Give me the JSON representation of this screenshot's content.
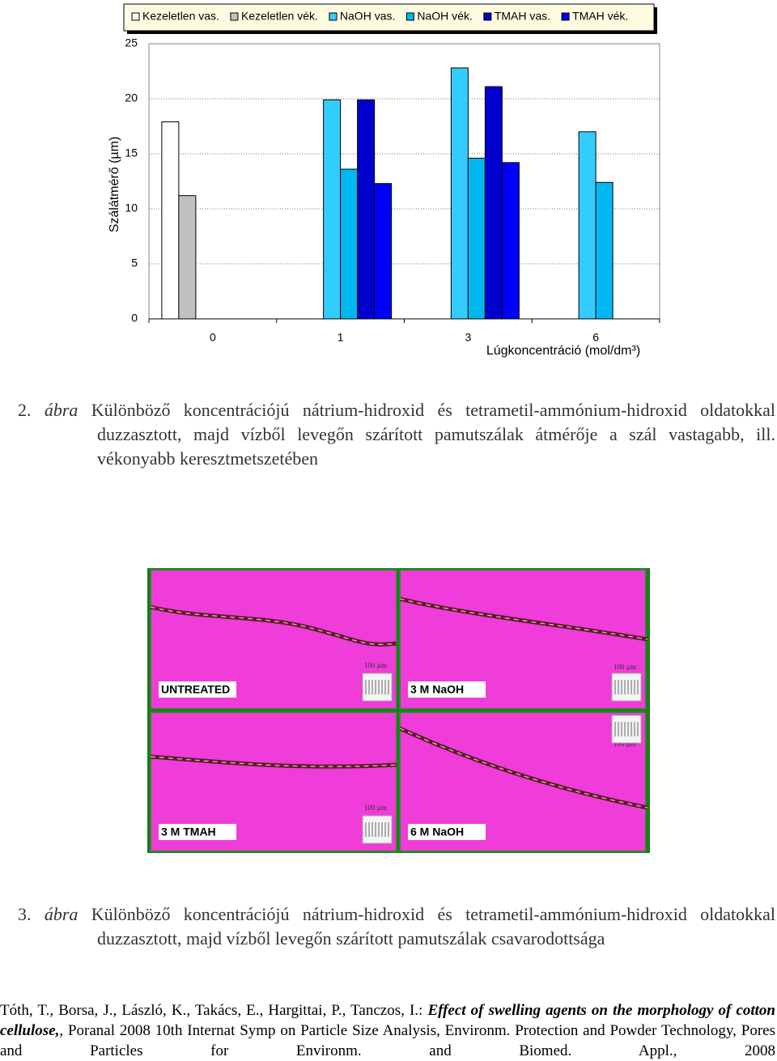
{
  "chart_data": {
    "type": "bar",
    "categories": [
      "0",
      "1",
      "3",
      "6"
    ],
    "x_label": "Lúgkoncentráció (mol/dm³)",
    "y_label": "Szálátmérő (µm)",
    "ylim": [
      0,
      25
    ],
    "yticks": [
      0,
      5,
      10,
      15,
      20,
      25
    ],
    "grid": true,
    "legend": "top",
    "series": [
      {
        "name": "Kezeletlen vas.",
        "color": "#ffffff",
        "values": [
          17.9,
          null,
          null,
          null
        ]
      },
      {
        "name": "Kezeletlen vék.",
        "color": "#c0c0c0",
        "values": [
          11.2,
          null,
          null,
          null
        ]
      },
      {
        "name": "NaOH vas.",
        "color": "#33ccff",
        "values": [
          null,
          19.9,
          22.8,
          17
        ]
      },
      {
        "name": "NaOH vék.",
        "color": "#00b8f0",
        "values": [
          null,
          13.6,
          14.6,
          12.4
        ]
      },
      {
        "name": "TMAH vas.",
        "color": "#0000cc",
        "values": [
          null,
          19.9,
          21.1,
          null
        ]
      },
      {
        "name": "TMAH vék.",
        "color": "#0000ff",
        "values": [
          null,
          12.3,
          14.2,
          null
        ]
      }
    ]
  },
  "figure2": {
    "number": "2.",
    "word": "ábra",
    "text": "Különböző koncentrációjú nátrium-hidroxid és tetrametil-ammónium-hidroxid oldatokkal duzzasztott, majd vízből levegőn szárított pamutszálak átmérője a szál vastagabb, ill. vékonyabb keresztmetszetében"
  },
  "figure3": {
    "panels": [
      {
        "label": "UNTREATED",
        "scale": "100 µm"
      },
      {
        "label": "3 M NaOH",
        "scale": "100 µm"
      },
      {
        "label": "3 M TMAH",
        "scale": "100 µm"
      },
      {
        "label": "6 M NaOH",
        "scale": "100 µm"
      }
    ],
    "number": "3.",
    "word": "ábra",
    "text": "Különböző koncentrációjú nátrium-hidroxid és tetrametil-ammónium-hidroxid oldatokkal duzzasztott, majd vízből levegőn szárított pamutszálak csavarodottsága"
  },
  "reference": {
    "authors": "Tóth, T., Borsa, J., László, K., Takács, E., Hargittai, P., Tanczos, I.:",
    "title": "Effect of swelling agents on the morphology of cotton cellulose,",
    "source": ", Poranal 2008 10th Internat Symp on Particle Size Analysis, Environm. Protection and Powder Technology, Pores and Particles for Environm. and Biomed. Appl., 2008"
  }
}
